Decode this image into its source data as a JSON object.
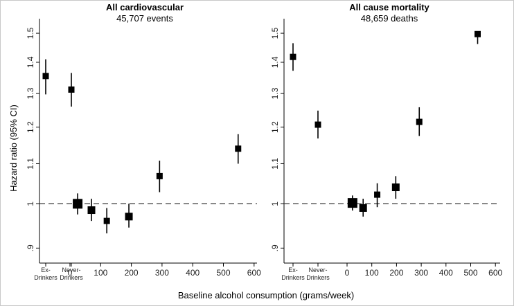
{
  "figure": {
    "xlabel": "Baseline alcohol consumption (grams/week)",
    "ylabel": "Hazard ratio (95% CI)"
  },
  "chart_data": [
    {
      "type": "scatter",
      "title": "All cardiovascular",
      "subtitle": "45,707 events",
      "ylabel": "Hazard ratio (95% CI)",
      "xlabel": "Baseline alcohol consumption (grams/week)",
      "y_scale": "log",
      "ylim": [
        0.88,
        1.52
      ],
      "yticks": [
        0.9,
        1,
        1.1,
        1.2,
        1.3,
        1.4,
        1.5
      ],
      "ytick_labels": [
        ".9",
        "1",
        "1.1",
        "1.2",
        "1.3",
        "1.4",
        "1.5"
      ],
      "xlim": [
        -50,
        620
      ],
      "xticks": [
        0,
        100,
        200,
        300,
        400,
        500,
        600
      ],
      "xtick_labels": [
        "0",
        "100",
        "200",
        "300",
        "400",
        "500",
        "600"
      ],
      "reference_line": 1,
      "categories": [
        {
          "label": "Ex-Drinkers",
          "hr": 1.355,
          "lo": 1.297,
          "hi": 1.41
        },
        {
          "label": "Never-Drinkers",
          "hr": 1.312,
          "lo": 1.26,
          "hi": 1.365
        }
      ],
      "points": [
        {
          "x": 25,
          "hr": 1.0,
          "lo": 0.975,
          "hi": 1.025,
          "size": "large"
        },
        {
          "x": 70,
          "hr": 0.985,
          "lo": 0.96,
          "hi": 1.012,
          "size": "medium"
        },
        {
          "x": 120,
          "hr": 0.96,
          "lo": 0.932,
          "hi": 0.99,
          "size": "small"
        },
        {
          "x": 192,
          "hr": 0.97,
          "lo": 0.945,
          "hi": 1.0,
          "size": "medium"
        },
        {
          "x": 292,
          "hr": 1.068,
          "lo": 1.028,
          "hi": 1.108,
          "size": "small"
        },
        {
          "x": 548,
          "hr": 1.14,
          "lo": 1.1,
          "hi": 1.18,
          "size": "small"
        }
      ]
    },
    {
      "type": "scatter",
      "title": "All cause mortality",
      "subtitle": "48,659 deaths",
      "ylabel": "",
      "xlabel": "Baseline alcohol consumption (grams/week)",
      "y_scale": "log",
      "ylim": [
        0.88,
        1.52
      ],
      "yticks": [
        0.9,
        1,
        1.1,
        1.2,
        1.3,
        1.4,
        1.5
      ],
      "ytick_labels": [
        ".9",
        "1",
        "1.1",
        "1.2",
        "1.3",
        "1.4",
        "1.5"
      ],
      "xlim": [
        -50,
        620
      ],
      "xticks": [
        0,
        100,
        200,
        300,
        400,
        500,
        600
      ],
      "xtick_labels": [
        "0",
        "100",
        "200",
        "300",
        "400",
        "500",
        "600"
      ],
      "reference_line": 1,
      "categories": [
        {
          "label": "Ex-Drinkers",
          "hr": 1.418,
          "lo": 1.372,
          "hi": 1.465
        },
        {
          "label": "Never-Drinkers",
          "hr": 1.207,
          "lo": 1.168,
          "hi": 1.248
        }
      ],
      "points": [
        {
          "x": 22,
          "hr": 1.002,
          "lo": 0.984,
          "hi": 1.02,
          "size": "large"
        },
        {
          "x": 65,
          "hr": 0.99,
          "lo": 0.97,
          "hi": 1.012,
          "size": "medium"
        },
        {
          "x": 122,
          "hr": 1.022,
          "lo": 0.992,
          "hi": 1.05,
          "size": "small"
        },
        {
          "x": 197,
          "hr": 1.04,
          "lo": 1.012,
          "hi": 1.068,
          "size": "medium"
        },
        {
          "x": 292,
          "hr": 1.215,
          "lo": 1.175,
          "hi": 1.258,
          "size": "small"
        },
        {
          "x": 528,
          "hr": 1.497,
          "lo": 1.462,
          "hi": 1.5,
          "size": "small"
        }
      ]
    }
  ]
}
